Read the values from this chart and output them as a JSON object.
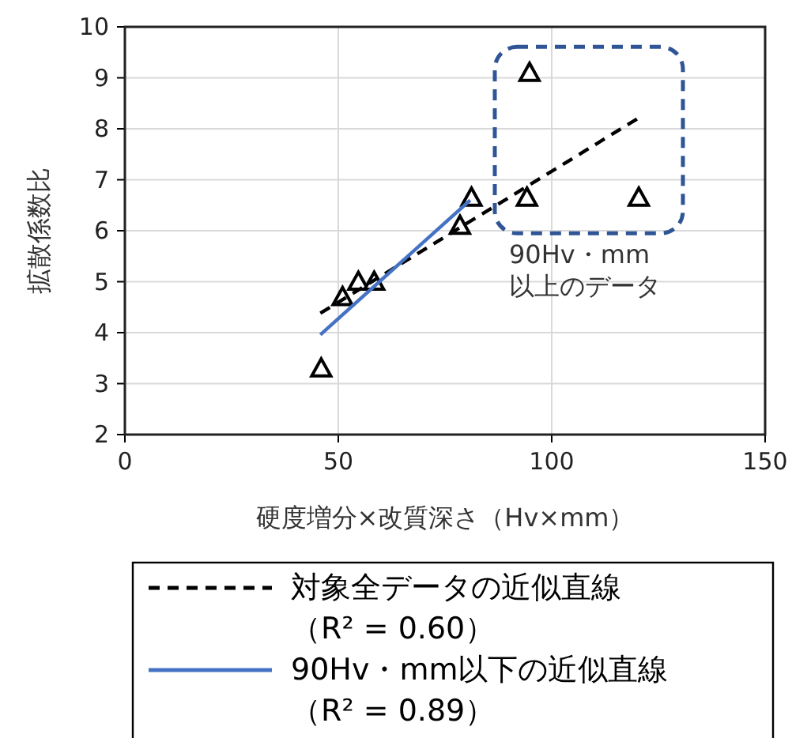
{
  "chart_data": {
    "type": "scatter",
    "xlabel": "硬度増分×改質深さ（Hv×mm）",
    "ylabel": "拡散係数比",
    "xlim": [
      0,
      150
    ],
    "xticks": [
      0,
      50,
      100,
      150
    ],
    "ylim": [
      2,
      10
    ],
    "yticks": [
      2,
      3,
      4,
      5,
      6,
      7,
      8,
      9,
      10
    ],
    "grid": true,
    "legend": "bottom",
    "series": [
      {
        "color": "#000000",
        "marker": "triangle",
        "x": [
          46.0,
          51.0,
          54.7,
          58.4,
          78.5,
          81.2,
          94.2,
          94.8,
          120.4
        ],
        "values": [
          3.3,
          4.7,
          5.0,
          5.0,
          6.1,
          6.65,
          6.65,
          9.1,
          6.65
        ]
      },
      {
        "type": "line",
        "name": "対象全データの近似直線（R² = 0.60）",
        "color": "#000000",
        "line_style": "dashed",
        "x": [
          45.8,
          120.7
        ],
        "values": [
          4.38,
          8.23
        ]
      },
      {
        "type": "line",
        "name": "90Hv・mm以下の近似直線（R² = 0.89）",
        "color": "#4472c4",
        "line_style": "solid",
        "x": [
          45.8,
          80.9
        ],
        "values": [
          3.96,
          6.6
        ]
      }
    ],
    "annotations": [
      "90Hv・mm\n以上のデータ"
    ]
  }
}
